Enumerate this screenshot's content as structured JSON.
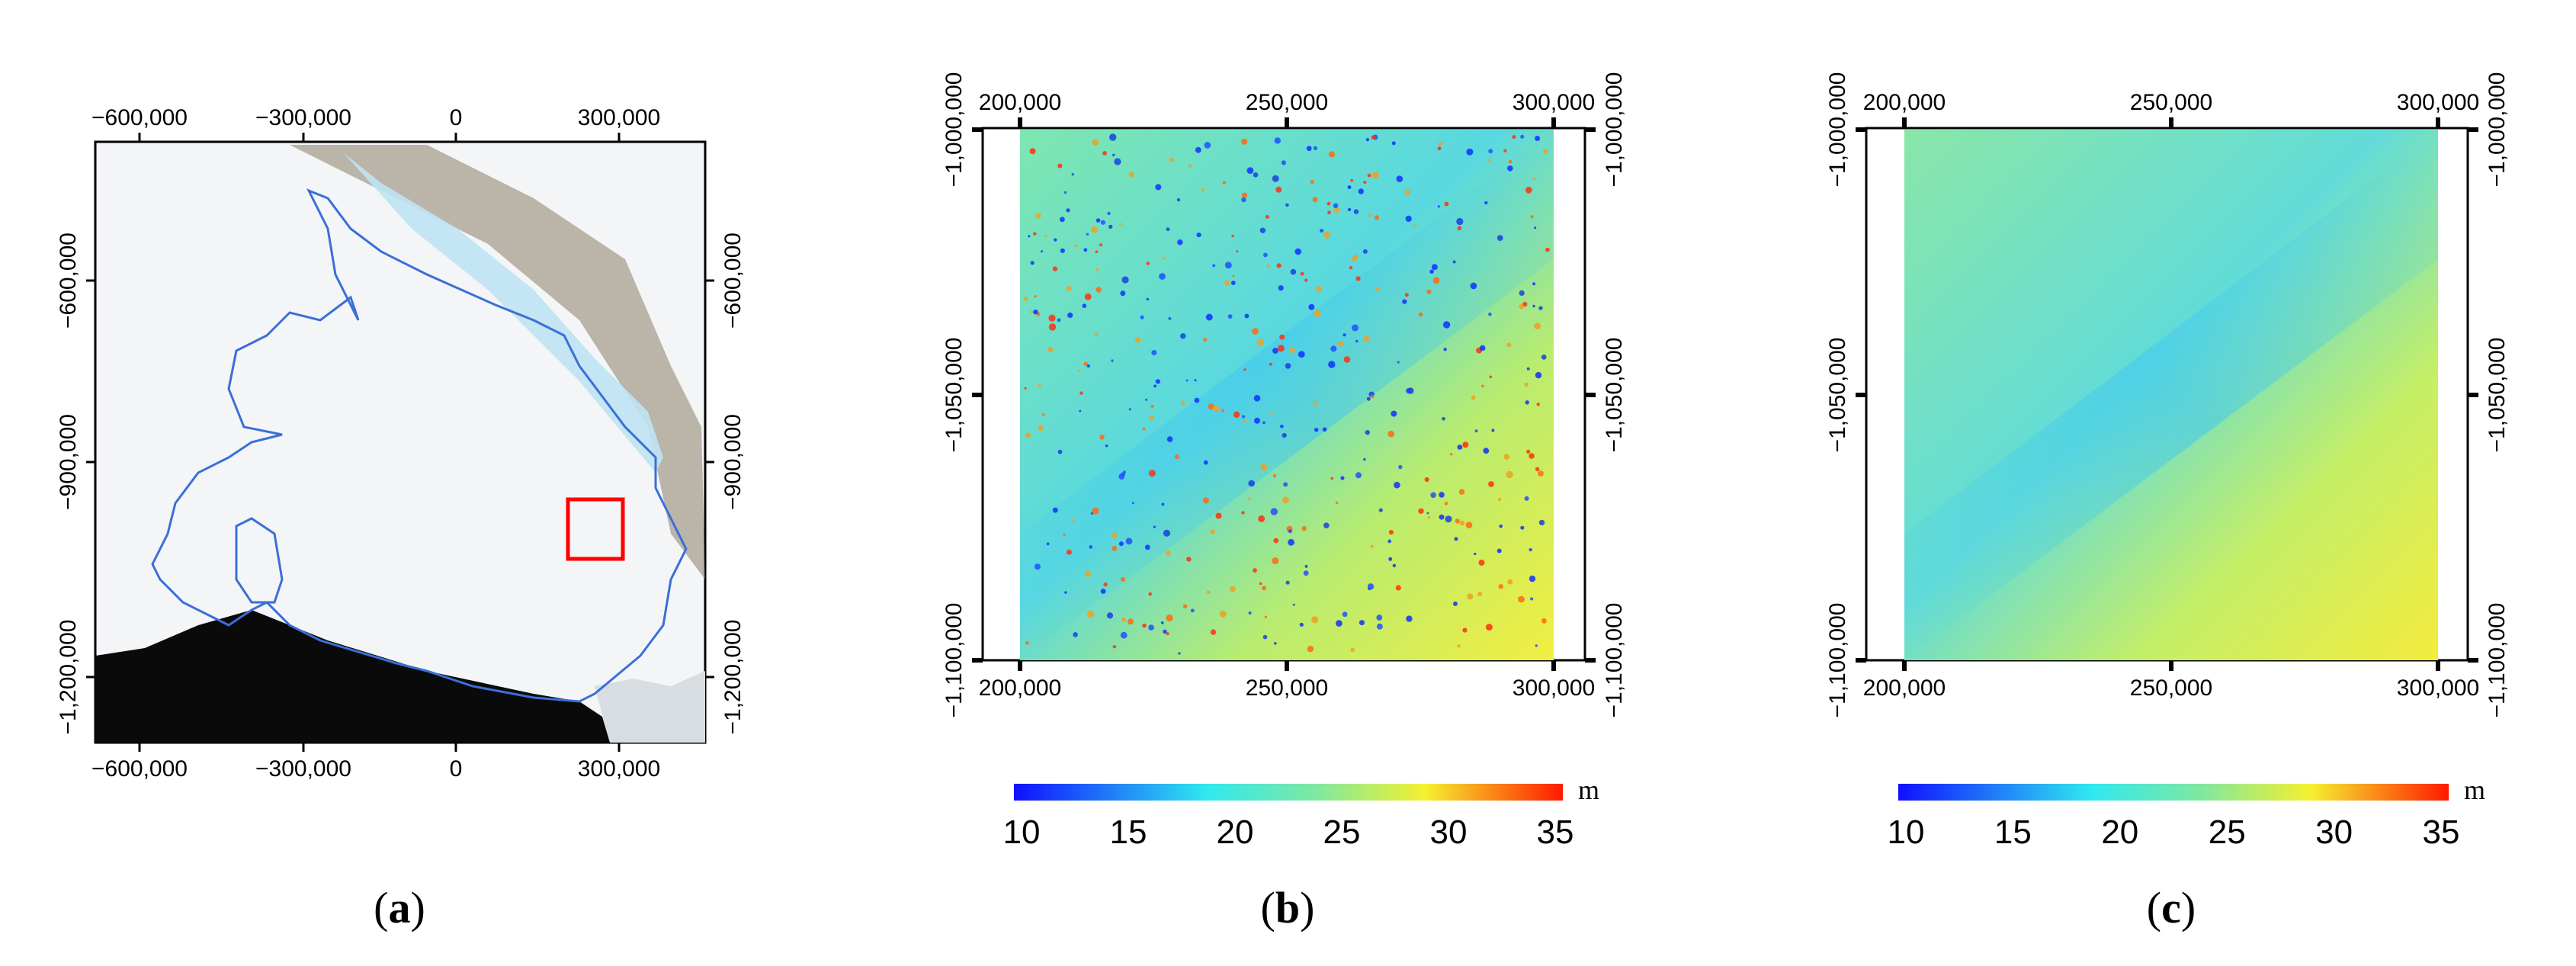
{
  "panels": {
    "a": {
      "caption_letter": "a",
      "x_ticks_top": [
        "−600,000",
        "−300,000",
        "0",
        "300,000"
      ],
      "x_ticks_bottom": [
        "−600,000",
        "−300,000",
        "0",
        "300,000"
      ],
      "y_ticks_left": [
        "−600,000",
        "−900,000",
        "−1,200,000"
      ],
      "y_ticks_right": [
        "−600,000",
        "−900,000",
        "−1,200,000"
      ],
      "highlight_color": "#ff0000",
      "outline_color": "#3a6fd8"
    },
    "b": {
      "caption_letter": "b",
      "x_ticks_top": [
        "200,000",
        "250,000",
        "300,000"
      ],
      "x_ticks_bottom": [
        "200,000",
        "250,000",
        "300,000"
      ],
      "y_ticks_left": [
        "−1,000,000",
        "−1,050,000",
        "−1,100,000"
      ],
      "y_ticks_right": [
        "−1,000,000",
        "−1,050,000",
        "−1,100,000"
      ],
      "colorbar": {
        "ticks": [
          "10",
          "15",
          "20",
          "25",
          "30",
          "35"
        ],
        "unit": "m"
      }
    },
    "c": {
      "caption_letter": "c",
      "x_ticks_top": [
        "200,000",
        "250,000",
        "300,000"
      ],
      "x_ticks_bottom": [
        "200,000",
        "250,000",
        "300,000"
      ],
      "y_ticks_left": [
        "−1,000,000",
        "−1,050,000",
        "−1,100,000"
      ],
      "y_ticks_right": [
        "−1,000,000",
        "−1,050,000",
        "−1,100,000"
      ],
      "colorbar": {
        "ticks": [
          "10",
          "15",
          "20",
          "25",
          "30",
          "35"
        ],
        "unit": "m"
      }
    }
  },
  "colormap": [
    "#0000ff",
    "#00ffff",
    "#ffff00",
    "#ff0000"
  ]
}
